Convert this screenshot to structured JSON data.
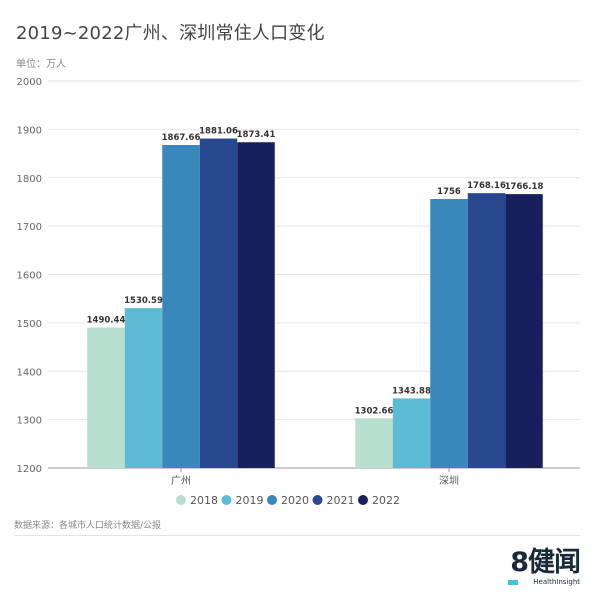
{
  "title": "2019~2022广州、深圳常住人口变化",
  "unit_label": "单位：万人",
  "source": "数据来源：各城市人口统计数据/公报",
  "logo": {
    "main": "8健闻",
    "sub": "HealthInsight"
  },
  "chart_data": {
    "type": "bar",
    "title": "2019~2022广州、深圳常住人口变化",
    "xlabel": "",
    "ylabel": "单位：万人",
    "ylim": [
      1200,
      2000
    ],
    "yticks": [
      1200,
      1300,
      1400,
      1500,
      1600,
      1700,
      1800,
      1900,
      2000
    ],
    "grid": true,
    "legend_position": "bottom",
    "categories": [
      "广州",
      "深圳"
    ],
    "series": [
      {
        "name": "2018",
        "color": "#b6dfcf",
        "values": [
          1490.44,
          1302.66
        ],
        "labels": [
          "1490.44",
          "1302.66"
        ]
      },
      {
        "name": "2019",
        "color": "#5cbcd5",
        "values": [
          1530.59,
          1343.88
        ],
        "labels": [
          "1530.59",
          "1343.88"
        ]
      },
      {
        "name": "2020",
        "color": "#3987bb",
        "values": [
          1867.66,
          1756
        ],
        "labels": [
          "1867.66",
          "1756"
        ]
      },
      {
        "name": "2021",
        "color": "#28488f",
        "values": [
          1881.06,
          1768.16
        ],
        "labels": [
          "1881.06",
          "1768.16"
        ]
      },
      {
        "name": "2022",
        "color": "#171f5d",
        "values": [
          1873.41,
          1766.18
        ],
        "labels": [
          "1873.41",
          "1766.18"
        ]
      }
    ]
  }
}
